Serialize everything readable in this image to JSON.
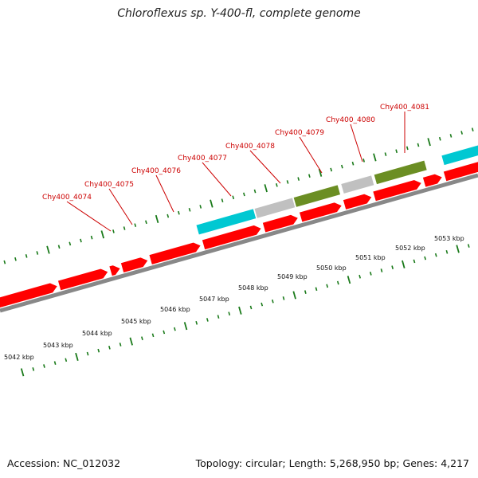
{
  "title": "Chloroflexus sp. Y-400-fl, complete genome",
  "footer": {
    "accession": "Accession: NC_012032",
    "summary": "Topology: circular; Length: 5,268,950 bp; Genes: 4,217"
  },
  "colors": {
    "gene_forward": "#ff0000",
    "gene_reverse": "#ff0000",
    "rna_cyan": "#00c8d2",
    "feature_gray": "#c0c0c0",
    "feature_olive": "#6b8e23",
    "backbone": "#888888",
    "ticks": "#1a7a1a",
    "label": "#cc0000"
  },
  "gene_labels": [
    "Chy400_4074",
    "Chy400_4075",
    "Chy400_4076",
    "Chy400_4077",
    "Chy400_4078",
    "Chy400_4079",
    "Chy400_4080",
    "Chy400_4081"
  ],
  "scale_labels": [
    "5042 kbp",
    "5043 kbp",
    "5044 kbp",
    "5045 kbp",
    "5046 kbp",
    "5047 kbp",
    "5048 kbp",
    "5049 kbp",
    "5050 kbp",
    "5051 kbp",
    "5052 kbp",
    "5053 kbp"
  ]
}
